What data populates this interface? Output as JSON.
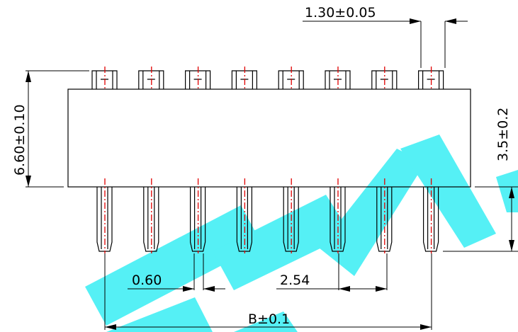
{
  "drawing": {
    "pin_count": 8,
    "dimensions": {
      "pin_width": "1.30±0.05",
      "body_height": "6.60±0.10",
      "pin_length": "3.5±0.2",
      "pin_thickness": "0.60",
      "pitch": "2.54",
      "overall_span": "B±0.1"
    },
    "watermark_text": "DEAL",
    "colors": {
      "outline": "#000000",
      "centerline": "#e00000",
      "watermark": "#55f0f5"
    }
  }
}
